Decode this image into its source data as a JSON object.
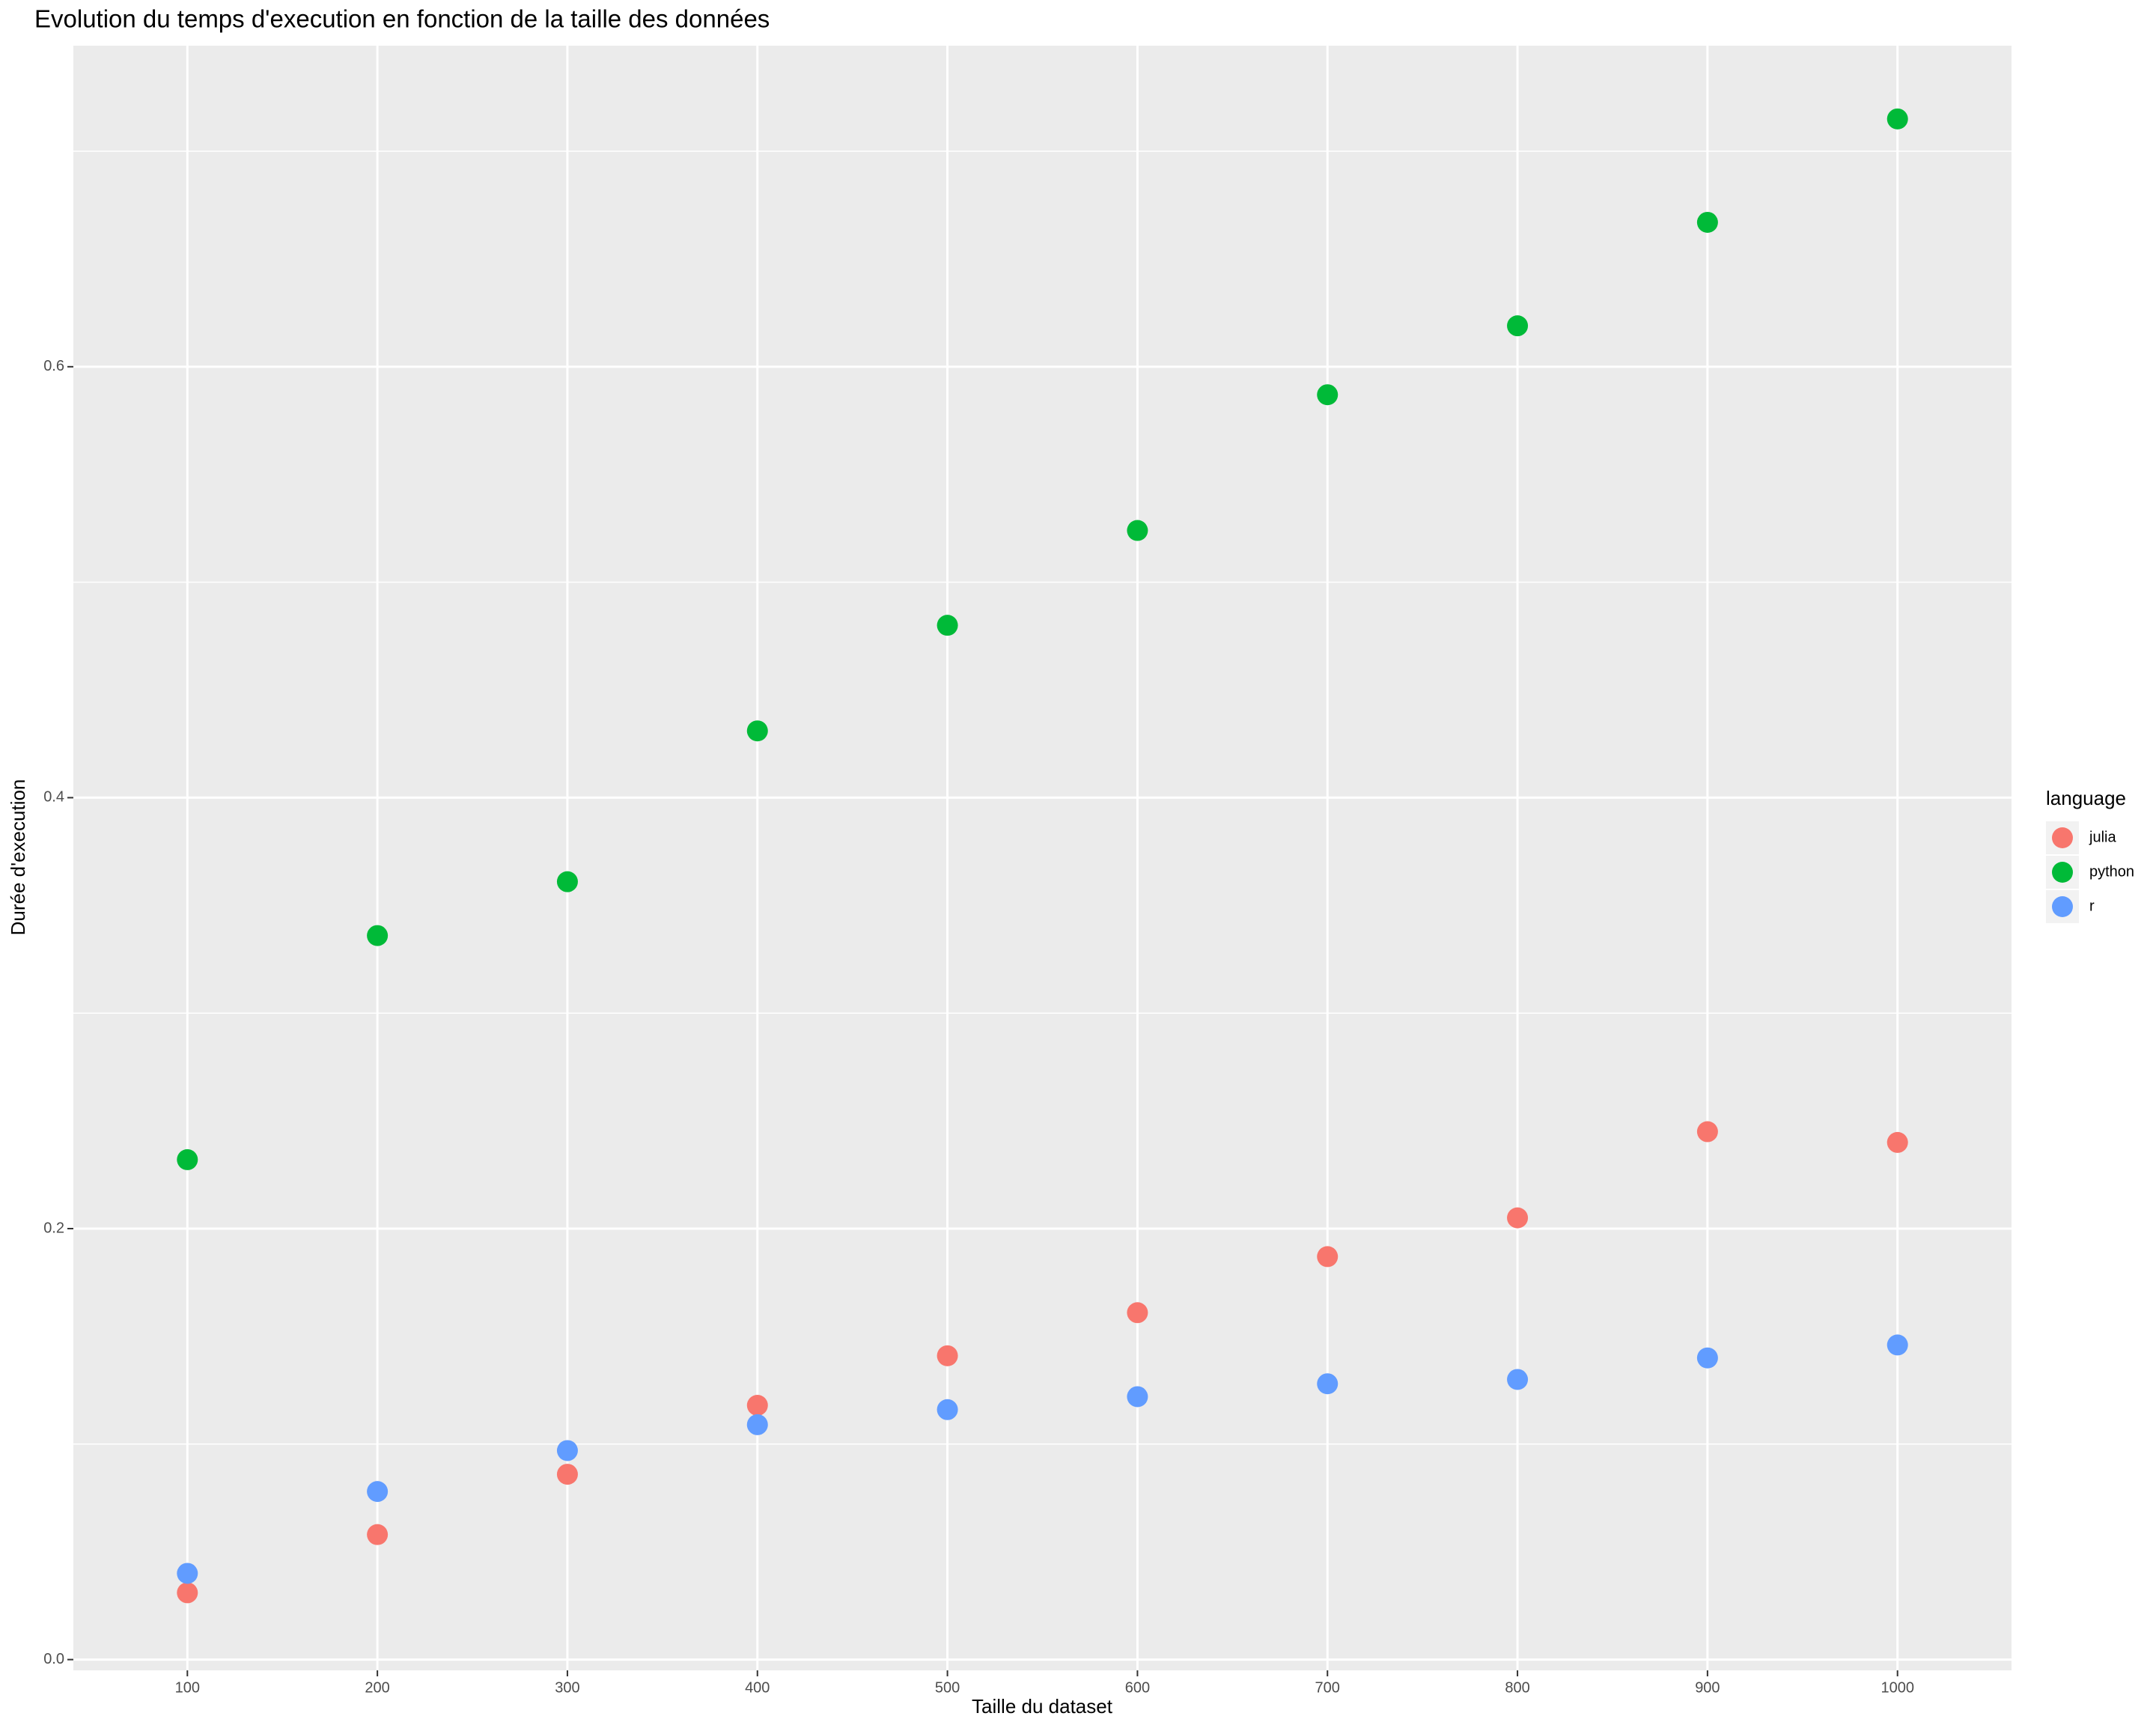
{
  "chart_data": {
    "type": "scatter",
    "title": "Evolution du temps d'execution en fonction de la taille des données",
    "x_label": "Taille du dataset",
    "y_label": "Durée d'execution",
    "legend_title": "language",
    "legend_position": "right",
    "x": [
      100,
      200,
      300,
      400,
      500,
      600,
      700,
      800,
      900,
      1000
    ],
    "series": [
      {
        "name": "julia",
        "color": "#f8766d",
        "values": [
          0.031,
          0.058,
          0.086,
          0.118,
          0.141,
          0.161,
          0.187,
          0.205,
          0.245,
          0.24
        ]
      },
      {
        "name": "python",
        "color": "#00ba38",
        "values": [
          0.232,
          0.336,
          0.361,
          0.431,
          0.48,
          0.524,
          0.587,
          0.619,
          0.667,
          0.715
        ]
      },
      {
        "name": "r",
        "color": "#619cff",
        "values": [
          0.04,
          0.078,
          0.097,
          0.109,
          0.116,
          0.122,
          0.128,
          0.13,
          0.14,
          0.146
        ]
      }
    ],
    "xlim": [
      40,
      1060
    ],
    "ylim": [
      -0.005,
      0.749
    ],
    "xticks": [
      100,
      200,
      300,
      400,
      500,
      600,
      700,
      800,
      900,
      1000
    ],
    "yticks": [
      {
        "value": 0,
        "label": "0.0"
      },
      0.2,
      0.4,
      0.6
    ],
    "y_minor_grid": [
      0.1,
      0.3,
      0.5,
      0.7
    ],
    "grid": true
  }
}
